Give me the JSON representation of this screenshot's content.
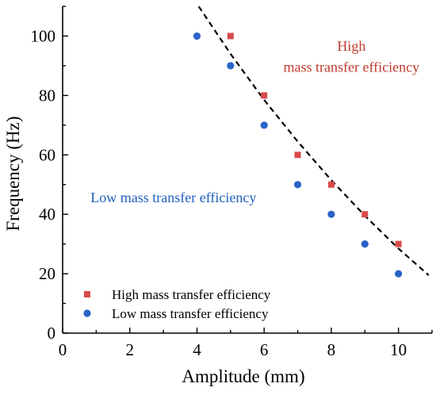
{
  "chart_data": {
    "type": "scatter",
    "xlabel": "Amplitude (mm)",
    "ylabel": "Frequency (Hz)",
    "xlim": [
      0,
      11
    ],
    "ylim": [
      0,
      110
    ],
    "xticks": [
      0,
      2,
      4,
      6,
      8,
      10
    ],
    "yticks": [
      0,
      20,
      40,
      60,
      80,
      100
    ],
    "grid": false,
    "legend_position": "bottom-left",
    "series": [
      {
        "name": "High mass transfer efficiency",
        "marker": "square",
        "color": "#d94a4a",
        "x": [
          5,
          6,
          7,
          8,
          9,
          10
        ],
        "y": [
          100,
          80,
          60,
          50,
          40,
          30
        ]
      },
      {
        "name": "Low mass transfer efficiency",
        "marker": "circle",
        "color": "#2a63c8",
        "x": [
          4,
          5,
          6,
          7,
          8,
          9,
          10
        ],
        "y": [
          100,
          90,
          70,
          50,
          40,
          30,
          20
        ]
      }
    ],
    "boundary": {
      "style": "dashed",
      "color": "#000000",
      "x": [
        4.05,
        5,
        6,
        7,
        8,
        9,
        10,
        10.9
      ],
      "y": [
        110,
        94,
        78.5,
        64.5,
        51.5,
        39.5,
        28.5,
        19.5
      ]
    },
    "annotations": [
      {
        "id": "high-region-line1",
        "text": "High",
        "color": "#c0392b",
        "x": 8.6,
        "y": 95,
        "anchor": "middle"
      },
      {
        "id": "high-region-line2",
        "text": "mass transfer efficiency",
        "color": "#c0392b",
        "x": 8.6,
        "y": 88,
        "anchor": "middle"
      },
      {
        "id": "low-region",
        "text": "Low mass transfer efficiency",
        "color": "#1f5fbf",
        "x": 3.3,
        "y": 44,
        "anchor": "middle"
      }
    ]
  }
}
